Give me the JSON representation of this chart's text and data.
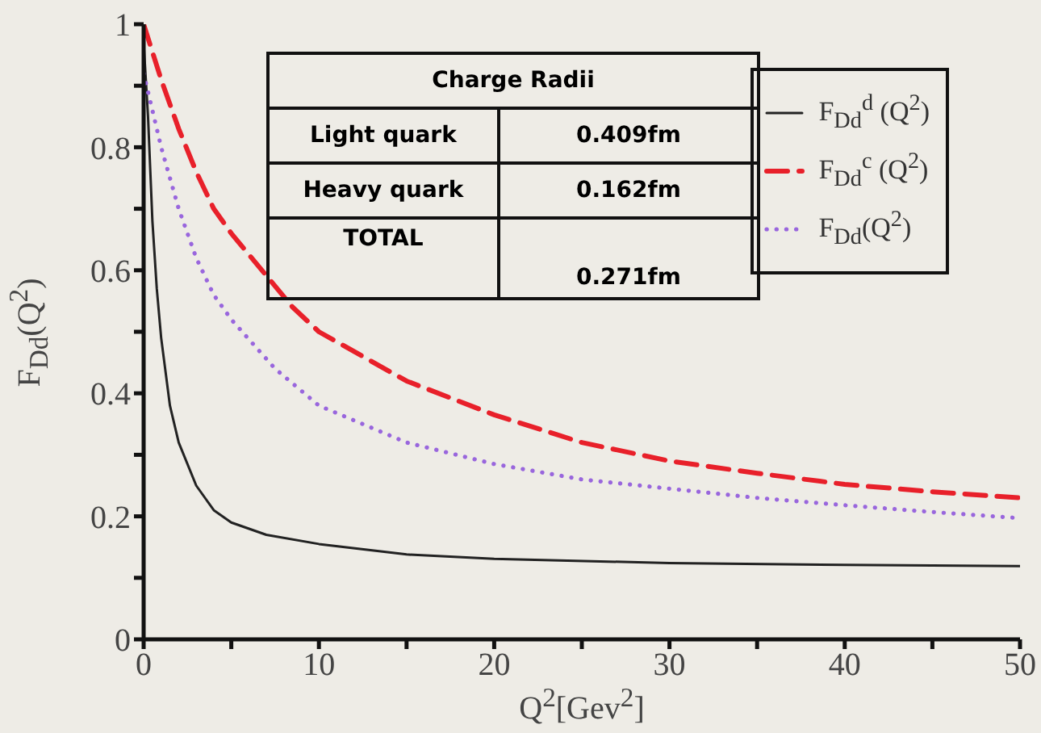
{
  "chart_data": {
    "type": "line",
    "xlabel": "Q$^{2}$[Gev$^{2}$]",
    "ylabel": "F$_{Dd}$(Q$^{2}$)",
    "xlim": [
      0,
      50
    ],
    "ylim": [
      0,
      1
    ],
    "xticks": [
      0,
      {
        "value": 5,
        "label": null
      },
      10,
      {
        "value": 15,
        "label": null
      },
      20,
      {
        "value": 25,
        "label": null
      },
      30,
      {
        "value": 35,
        "label": null
      },
      40,
      {
        "value": 45,
        "label": null
      },
      50
    ],
    "yticks": [
      0,
      {
        "value": 0.1,
        "label": null
      },
      0.2,
      {
        "value": 0.3,
        "label": null
      },
      0.4,
      {
        "value": 0.5,
        "label": null
      },
      0.6,
      {
        "value": 0.7,
        "label": null
      },
      0.8,
      {
        "value": 0.9,
        "label": null
      },
      1
    ],
    "grid": false,
    "legend": "top right",
    "marker": "none",
    "annotations": [
      "Charge Radii",
      "Light quark",
      "0.409fm",
      "Heavy quark",
      "0.162fm",
      "TOTAL",
      "0.271fm"
    ],
    "series": [
      {
        "name": "F$_{Dd}$$^{d}$ (Q$^{2}$)",
        "color": "#222222",
        "line_style": "solid",
        "x": [
          0,
          0.25,
          0.5,
          0.75,
          1,
          1.5,
          2,
          3,
          4,
          5,
          7,
          10,
          15,
          20,
          30,
          40,
          50
        ],
        "values": [
          0.97,
          0.85,
          0.68,
          0.57,
          0.49,
          0.38,
          0.32,
          0.25,
          0.21,
          0.19,
          0.17,
          0.155,
          0.138,
          0.131,
          0.124,
          0.121,
          0.119
        ]
      },
      {
        "name": "F$_{Dd}$$^{c}$ (Q$^{2}$)",
        "color": "#e8202a",
        "line_style": "dashed",
        "x": [
          0,
          1,
          2,
          3,
          4,
          5,
          8.5,
          10,
          15,
          20,
          25,
          30,
          35,
          40,
          45,
          50
        ],
        "values": [
          1.0,
          0.91,
          0.83,
          0.76,
          0.7,
          0.66,
          0.54,
          0.5,
          0.42,
          0.365,
          0.32,
          0.29,
          0.27,
          0.252,
          0.24,
          0.23
        ]
      },
      {
        "name": "F$_{Dd}$(Q$^{2}$)",
        "color": "#9966dd",
        "line_style": "dotted",
        "x": [
          0,
          0.5,
          1,
          2,
          3,
          4,
          5,
          7.5,
          10,
          15,
          20,
          25,
          30,
          35,
          40,
          45,
          50
        ],
        "values": [
          0.92,
          0.86,
          0.8,
          0.7,
          0.62,
          0.56,
          0.52,
          0.44,
          0.38,
          0.32,
          0.285,
          0.26,
          0.245,
          0.23,
          0.218,
          0.207,
          0.197
        ]
      }
    ]
  }
}
